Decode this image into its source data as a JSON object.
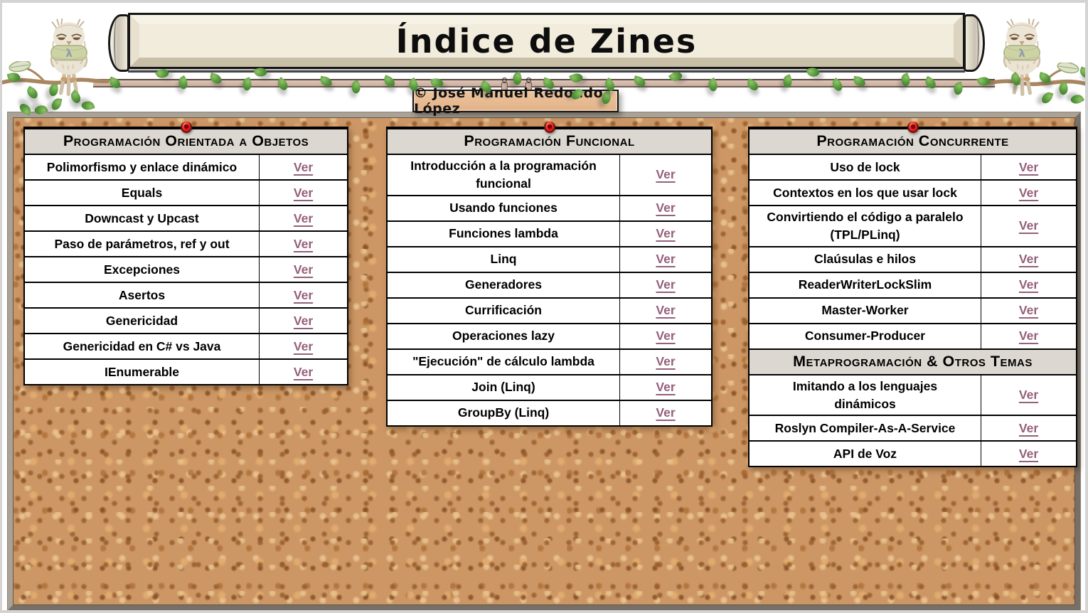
{
  "header": {
    "title": "Índice de Zines",
    "copyright": "© José Manuel Redondo López",
    "owl_lambda": "λ"
  },
  "view_label": "Ver",
  "icons": {
    "pin": "red-pushpin",
    "leaf": "green-leaf",
    "owl": "owl-with-lambda-scarf"
  },
  "colors": {
    "link": "#94607a",
    "table_header_bg": "#dcd7d0",
    "cork": "#cd9765",
    "pin": "#ec1a1a"
  },
  "boards": [
    {
      "id": "table-poo",
      "sections": [
        {
          "title": "Programación Orientada a Objetos",
          "items": [
            "Polimorfismo y enlace dinámico",
            "Equals",
            "Downcast y Upcast",
            "Paso de parámetros, ref y out",
            "Excepciones",
            "Asertos",
            "Genericidad",
            "Genericidad en C# vs Java",
            "IEnumerable"
          ]
        }
      ]
    },
    {
      "id": "table-funcional",
      "sections": [
        {
          "title": "Programación Funcional",
          "items": [
            "Introducción a la programación\nfuncional",
            "Usando funciones",
            "Funciones lambda",
            "Linq",
            "Generadores",
            "Currificación",
            "Operaciones lazy",
            "\"Ejecución\" de cálculo lambda",
            "Join (Linq)",
            "GroupBy (Linq)"
          ]
        }
      ]
    },
    {
      "id": "table-concurrente",
      "sections": [
        {
          "title": "Programación Concurrente",
          "items": [
            "Uso de lock",
            "Contextos en los que usar lock",
            "Convirtiendo el código a paralelo\n(TPL/PLinq)",
            "Claúsulas e hilos",
            "ReaderWriterLockSlim",
            "Master-Worker",
            "Consumer-Producer"
          ]
        },
        {
          "title": "Metaprogramación & Otros Temas",
          "items": [
            "Imitando a los lenguajes\ndinámicos",
            "Roslyn Compiler-As-A-Service",
            "API de Voz"
          ]
        }
      ]
    }
  ]
}
